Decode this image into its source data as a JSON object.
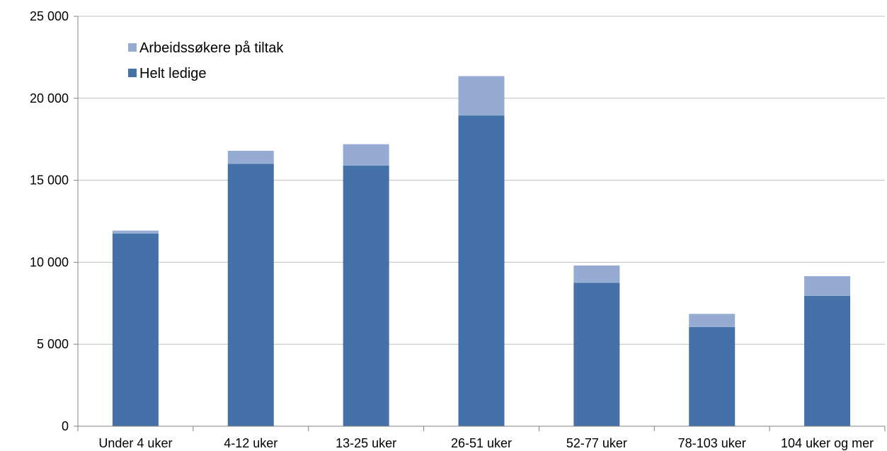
{
  "chart_data": {
    "type": "bar",
    "stacked": true,
    "title": "",
    "xlabel": "",
    "ylabel": "",
    "categories": [
      "Under 4 uker",
      "4-12 uker",
      "13-25 uker",
      "26-51 uker",
      "52-77 uker",
      "78-103 uker",
      "104 uker og mer"
    ],
    "series": [
      {
        "name": "Helt ledige",
        "color": "#4472a8",
        "values": [
          11750,
          16000,
          15900,
          18950,
          8750,
          6050,
          7950
        ]
      },
      {
        "name": "Arbeidssøkere på tiltak",
        "color": "#95abd2",
        "values": [
          180,
          800,
          1300,
          2400,
          1050,
          800,
          1200
        ]
      }
    ],
    "ylim": [
      0,
      25000
    ],
    "yticks": [
      0,
      5000,
      10000,
      15000,
      20000,
      25000
    ],
    "ytick_labels": [
      "0",
      "5 000",
      "10 000",
      "15 000",
      "20 000",
      "25 000"
    ],
    "grid": true,
    "legend": {
      "position": "top-left",
      "entries": [
        "Arbeidssøkere på tiltak",
        "Helt ledige"
      ]
    }
  }
}
